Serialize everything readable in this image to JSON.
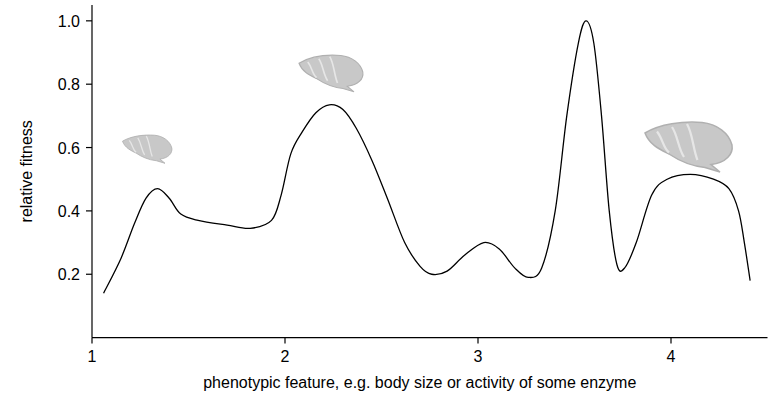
{
  "chart_data": {
    "type": "line",
    "x_label": "phenotypic feature, e.g. body size or activity of some enzyme",
    "y_label": "relative fitness",
    "xlim": [
      1,
      4.5
    ],
    "ylim": [
      0,
      1.05
    ],
    "xticks": [
      1,
      2,
      3,
      4
    ],
    "yticks": [
      0.2,
      0.4,
      0.6,
      0.8,
      {
        "value": 1,
        "label": "1.0"
      }
    ],
    "grid": false,
    "x": [
      1.06,
      1.15,
      1.22,
      1.28,
      1.34,
      1.4,
      1.46,
      1.55,
      1.7,
      1.82,
      1.93,
      1.98,
      2.03,
      2.09,
      2.16,
      2.23,
      2.3,
      2.37,
      2.45,
      2.53,
      2.62,
      2.7,
      2.76,
      2.84,
      2.93,
      3.03,
      3.11,
      3.19,
      3.26,
      3.33,
      3.4,
      3.46,
      3.52,
      3.56,
      3.6,
      3.64,
      3.68,
      3.72,
      3.76,
      3.82,
      3.9,
      3.98,
      4.1,
      4.22,
      4.3,
      4.35,
      4.38,
      4.41
    ],
    "series": [
      {
        "color": "#000000",
        "values": [
          0.14,
          0.25,
          0.36,
          0.44,
          0.47,
          0.44,
          0.39,
          0.37,
          0.355,
          0.345,
          0.37,
          0.45,
          0.58,
          0.65,
          0.71,
          0.735,
          0.72,
          0.66,
          0.56,
          0.44,
          0.3,
          0.225,
          0.2,
          0.21,
          0.26,
          0.3,
          0.28,
          0.22,
          0.19,
          0.22,
          0.4,
          0.7,
          0.93,
          1.0,
          0.93,
          0.7,
          0.4,
          0.23,
          0.22,
          0.3,
          0.45,
          0.5,
          0.515,
          0.5,
          0.47,
          0.4,
          0.3,
          0.18
        ]
      }
    ]
  }
}
